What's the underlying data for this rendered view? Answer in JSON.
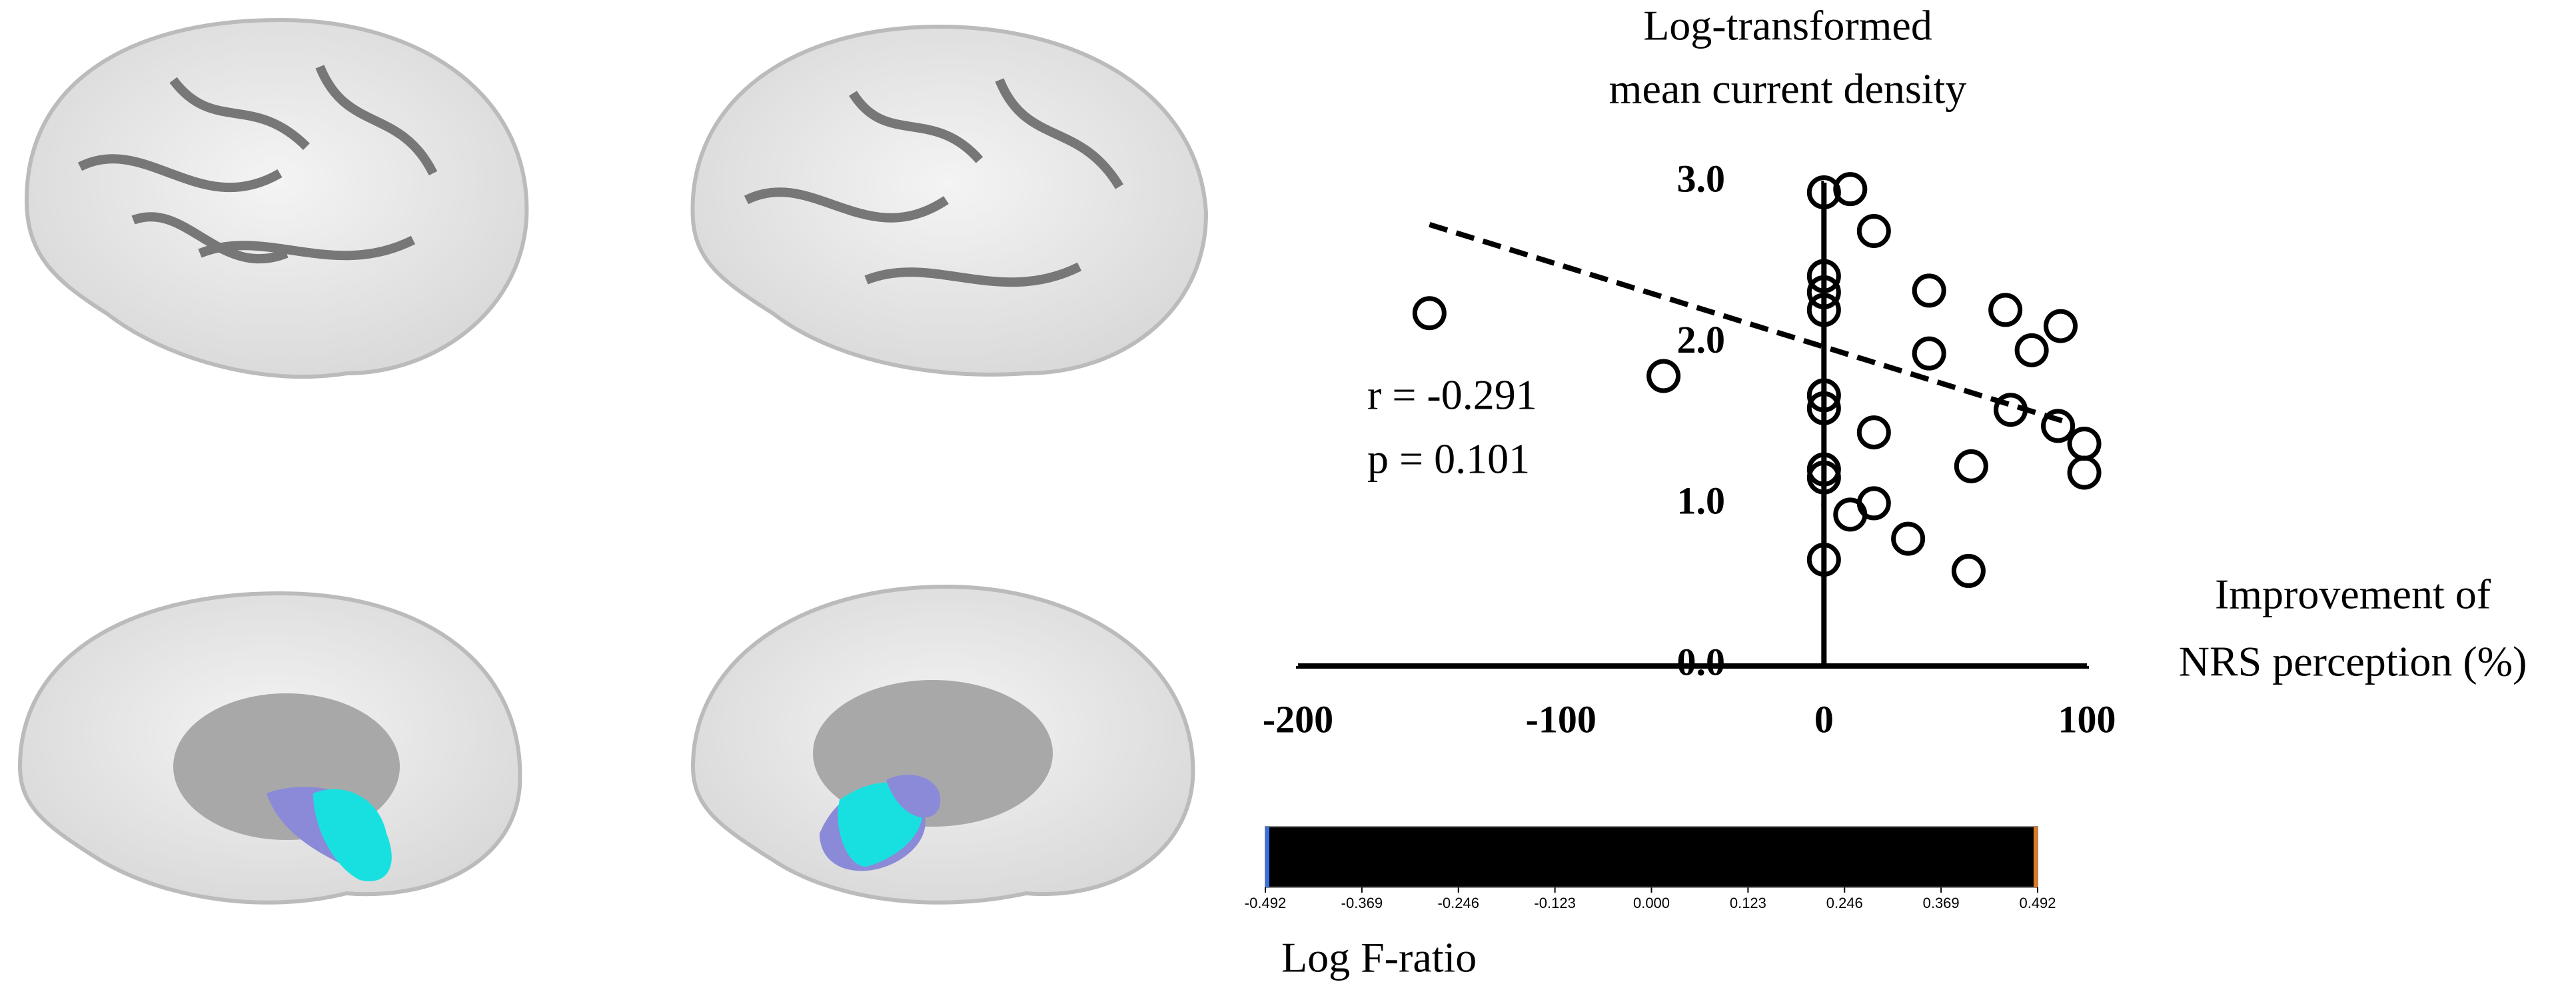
{
  "chart_data": {
    "type": "scatter",
    "title": [
      "Log-transformed",
      "mean current density"
    ],
    "x_label": [
      "Improvement of",
      "NRS perception (%)"
    ],
    "annotations": [
      "r = -0.291",
      "p = 0.101"
    ],
    "color": "#000000",
    "x": [
      -150,
      -61,
      0,
      10,
      19,
      0,
      0,
      0,
      40,
      40,
      69,
      90,
      79,
      0,
      0,
      71,
      89,
      99,
      99,
      19,
      56,
      0,
      0,
      19,
      10,
      32,
      0,
      55
    ],
    "values": [
      2.19,
      1.8,
      2.94,
      2.96,
      2.7,
      2.42,
      2.32,
      2.21,
      2.33,
      1.94,
      2.21,
      2.11,
      1.96,
      1.68,
      1.6,
      1.59,
      1.49,
      1.38,
      1.2,
      1.45,
      1.24,
      1.22,
      1.17,
      1.01,
      0.94,
      0.79,
      0.66,
      0.59
    ],
    "trend_line": {
      "x": [
        -150,
        95
      ],
      "values": [
        2.74,
        1.5
      ]
    },
    "xlim": [
      -200,
      100
    ],
    "ylim": [
      0,
      3
    ],
    "xticks": [
      -200,
      -100,
      0,
      100
    ],
    "yticks": [
      {
        "value": 0,
        "label": "0.0"
      },
      {
        "value": 1,
        "label": "1.0"
      },
      {
        "value": 2,
        "label": "2.0"
      },
      {
        "value": 3,
        "label": "3.0"
      }
    ],
    "colorbar": {
      "label": "Log F-ratio",
      "ticks": [
        -0.492,
        -0.369,
        -0.246,
        -0.123,
        {
          "value": 0,
          "label": "0.000"
        },
        0.123,
        0.246,
        0.369,
        0.492
      ]
    }
  }
}
